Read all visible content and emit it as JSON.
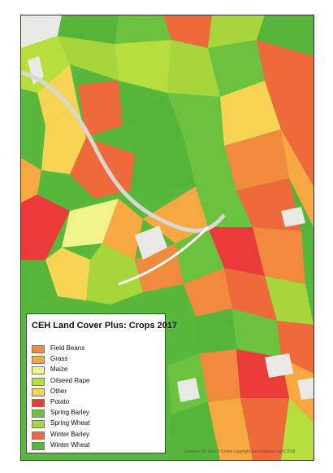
{
  "legend": {
    "title": "CEH Land Cover Plus: Crops 2017",
    "items": [
      {
        "label": "Field Beans",
        "color": "#f08a3c"
      },
      {
        "label": "Grass",
        "color": "#f7a840"
      },
      {
        "label": "Maize",
        "color": "#f2f28a"
      },
      {
        "label": "Oilseed Rape",
        "color": "#b6df3e"
      },
      {
        "label": "Other",
        "color": "#f8d455"
      },
      {
        "label": "Potato",
        "color": "#ea3a3a"
      },
      {
        "label": "Spring Barley",
        "color": "#6bc23e"
      },
      {
        "label": "Spring Wheat",
        "color": "#a7d63c"
      },
      {
        "label": "Winter Barley",
        "color": "#ee6a3a"
      },
      {
        "label": "Winter Wheat",
        "color": "#55b43a"
      }
    ]
  },
  "attribution": "Contains OS data © Crown copyright and database right 2018"
}
